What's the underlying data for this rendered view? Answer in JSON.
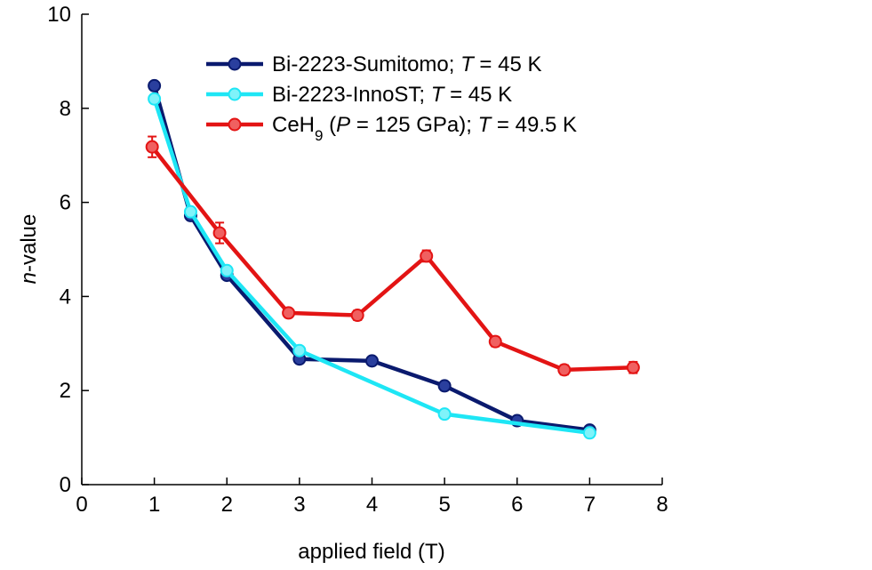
{
  "chart_data": {
    "type": "line",
    "title": "",
    "xlabel": "applied field (T)",
    "ylabel_italic": "n",
    "ylabel_rest": "-value",
    "xlim": [
      0,
      8
    ],
    "ylim": [
      0,
      10
    ],
    "xticks": [
      0,
      1,
      2,
      3,
      4,
      5,
      6,
      7,
      8
    ],
    "yticks": [
      0,
      2,
      4,
      6,
      8,
      10
    ],
    "grid": false,
    "legend_placement": "top-right",
    "series": [
      {
        "name": "Bi-2223-Sumitomo; T = 45 K",
        "legend_parts": {
          "prefix": "Bi-2223-Sumitomo; ",
          "italic": "T",
          "suffix": " = 45 K"
        },
        "color": "#0a1a6e",
        "marker_color": "#2a3f9e",
        "x": [
          1,
          1.5,
          2,
          3,
          4,
          5,
          6,
          7
        ],
        "y": [
          8.48,
          5.72,
          4.45,
          2.67,
          2.63,
          2.1,
          1.36,
          1.16
        ],
        "yerr": null
      },
      {
        "name": "Bi-2223-InnoST; T = 45 K",
        "legend_parts": {
          "prefix": "Bi-2223-InnoST; ",
          "italic": "T",
          "suffix": " = 45 K"
        },
        "color": "#1ee6f5",
        "marker_color": "#7ff3fa",
        "x": [
          1,
          1.5,
          2,
          3,
          5,
          7
        ],
        "y": [
          8.2,
          5.8,
          4.55,
          2.85,
          1.5,
          1.1
        ],
        "yerr": null
      },
      {
        "name": "CeH9 (P = 125 GPa); T = 49.5 K",
        "legend_parts": {
          "prefix": "CeH",
          "sub": "9",
          "mid1": " (",
          "italic1": "P",
          "mid2": " = 125 GPa);  ",
          "italic2": "T",
          "suffix": " = 49.5 K"
        },
        "color": "#e31414",
        "marker_color": "#f06060",
        "x": [
          0.97,
          1.9,
          2.85,
          3.8,
          4.75,
          5.7,
          6.65,
          7.6
        ],
        "y": [
          7.18,
          5.35,
          3.65,
          3.6,
          4.86,
          3.04,
          2.44,
          2.49
        ],
        "yerr": [
          0.22,
          0.22,
          0.08,
          0.1,
          0.12,
          0.1,
          0.1,
          0.12
        ]
      }
    ]
  }
}
